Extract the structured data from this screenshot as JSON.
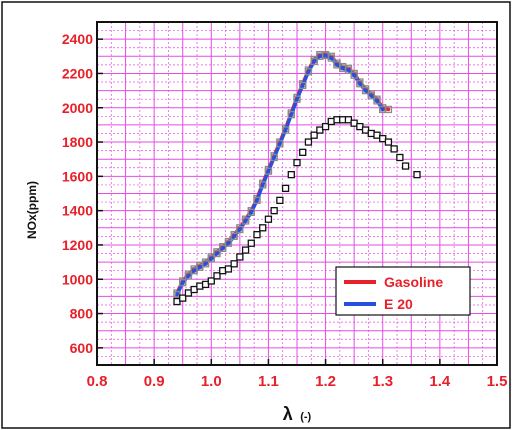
{
  "chart_data": {
    "type": "line",
    "xlabel_main": "λ",
    "xlabel_unit": "(-)",
    "ylabel": "NOx(ppm)",
    "xlim": [
      0.8,
      1.5
    ],
    "ylim": [
      500,
      2500
    ],
    "x_ticks": [
      "0.8",
      "0.9",
      "1.0",
      "1.1",
      "1.2",
      "1.3",
      "1.4",
      "1.5"
    ],
    "y_ticks": [
      "600",
      "800",
      "1000",
      "1200",
      "1400",
      "1600",
      "1800",
      "2000",
      "2200",
      "2400"
    ],
    "grid": true,
    "legend_position": "bottom-right",
    "colors": {
      "background": "#ffffff",
      "grid": "#e64ce6",
      "axis": "#111111",
      "tick_text": "#e8202a",
      "gasoline": "#e8202a",
      "e20": "#2a4fe0",
      "markers_black": "#111111",
      "markers_grey": "#8a8a8a"
    },
    "series": [
      {
        "name": "Gasoline",
        "color": "#e8202a",
        "x": [
          0.94,
          0.95,
          0.96,
          0.97,
          0.98,
          0.99,
          1.0,
          1.01,
          1.02,
          1.03,
          1.04,
          1.05,
          1.06,
          1.07,
          1.08,
          1.09,
          1.1,
          1.11,
          1.12,
          1.13,
          1.14,
          1.15,
          1.16,
          1.17,
          1.18,
          1.19,
          1.2,
          1.21,
          1.22,
          1.23,
          1.24,
          1.25,
          1.26,
          1.27,
          1.28,
          1.29,
          1.3,
          1.31
        ],
        "y": [
          920,
          990,
          1030,
          1060,
          1080,
          1100,
          1130,
          1160,
          1190,
          1220,
          1260,
          1300,
          1350,
          1400,
          1470,
          1560,
          1640,
          1720,
          1800,
          1880,
          1970,
          2060,
          2140,
          2220,
          2280,
          2310,
          2310,
          2300,
          2260,
          2240,
          2230,
          2200,
          2150,
          2110,
          2080,
          2050,
          2000,
          1990
        ]
      },
      {
        "name": "E 20",
        "color": "#2a4fe0",
        "x": [
          0.94,
          0.95,
          0.96,
          0.97,
          0.98,
          0.99,
          1.0,
          1.01,
          1.02,
          1.03,
          1.04,
          1.05,
          1.06,
          1.07,
          1.08,
          1.09,
          1.1,
          1.11,
          1.12,
          1.13,
          1.14,
          1.15,
          1.16,
          1.17,
          1.18,
          1.19,
          1.2,
          1.21,
          1.22,
          1.23,
          1.24,
          1.25,
          1.26,
          1.27,
          1.28,
          1.29,
          1.3
        ],
        "y": [
          910,
          980,
          1020,
          1050,
          1070,
          1090,
          1120,
          1150,
          1180,
          1210,
          1250,
          1290,
          1340,
          1390,
          1460,
          1550,
          1630,
          1710,
          1790,
          1870,
          1960,
          2050,
          2130,
          2210,
          2270,
          2300,
          2305,
          2290,
          2250,
          2230,
          2220,
          2190,
          2140,
          2100,
          2070,
          2040,
          1990
        ]
      },
      {
        "marker_only": true,
        "color": "#111111",
        "x": [
          0.94,
          0.95,
          0.96,
          0.97,
          0.98,
          0.99,
          1.0,
          1.01,
          1.02,
          1.03,
          1.04,
          1.05,
          1.06,
          1.07,
          1.08,
          1.09,
          1.1,
          1.11,
          1.12,
          1.13,
          1.14,
          1.15,
          1.16,
          1.17,
          1.18,
          1.19,
          1.2,
          1.21,
          1.22,
          1.23,
          1.24,
          1.25,
          1.26,
          1.27,
          1.28,
          1.29,
          1.3,
          1.31,
          1.32,
          1.33,
          1.34,
          1.36
        ],
        "y": [
          870,
          890,
          920,
          940,
          960,
          970,
          990,
          1020,
          1050,
          1060,
          1090,
          1130,
          1170,
          1210,
          1260,
          1300,
          1350,
          1400,
          1460,
          1530,
          1610,
          1680,
          1740,
          1800,
          1840,
          1870,
          1890,
          1920,
          1930,
          1930,
          1930,
          1910,
          1890,
          1870,
          1850,
          1840,
          1820,
          1800,
          1760,
          1710,
          1660,
          1610
        ]
      }
    ]
  }
}
